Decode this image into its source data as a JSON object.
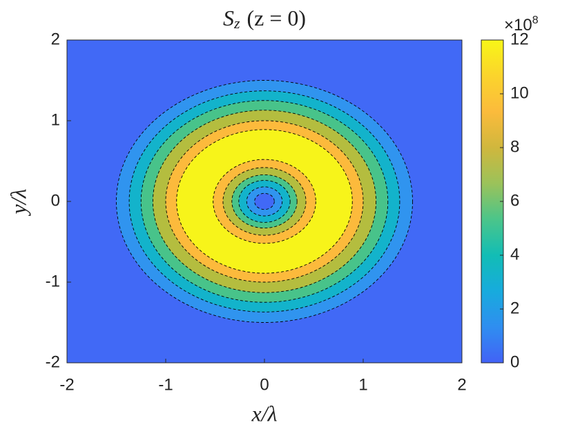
{
  "chart_data": {
    "type": "contour",
    "title": {
      "main": "S",
      "sub": "z",
      "rest": "(z = 0)"
    },
    "x_label": "x/λ",
    "y_label": "y/λ",
    "xlim": [
      -2,
      2
    ],
    "ylim": [
      -2,
      2
    ],
    "xticks": [
      -2,
      -1,
      0,
      1,
      2
    ],
    "yticks": [
      -2,
      -1,
      0,
      1,
      2
    ],
    "levels": [
      1.7,
      3.4,
      5.1,
      6.9,
      8.6,
      10.3
    ],
    "outer_radius": [
      1.5,
      1.37,
      1.25,
      1.13,
      1.0,
      0.89
    ],
    "inner_radius": [
      0.1,
      0.18,
      0.26,
      0.33,
      0.42,
      0.52
    ],
    "fill_colors": [
      "#4169f6",
      "#3094ef",
      "#13b3cb",
      "#48c38a",
      "#b4bd3f",
      "#fcba3c",
      "#f7f41a"
    ],
    "colormap": [
      "#4262f6",
      "#2f8ef0",
      "#17abdd",
      "#12bdb5",
      "#4bc58a",
      "#9bc25a",
      "#d0b73d",
      "#fbbb3c",
      "#fbd42c",
      "#f8f617"
    ],
    "clim": [
      0,
      12
    ],
    "cticks": [
      0,
      2,
      4,
      6,
      8,
      10,
      12
    ],
    "colorbar_multiplier": "×10",
    "colorbar_exponent": 8
  }
}
